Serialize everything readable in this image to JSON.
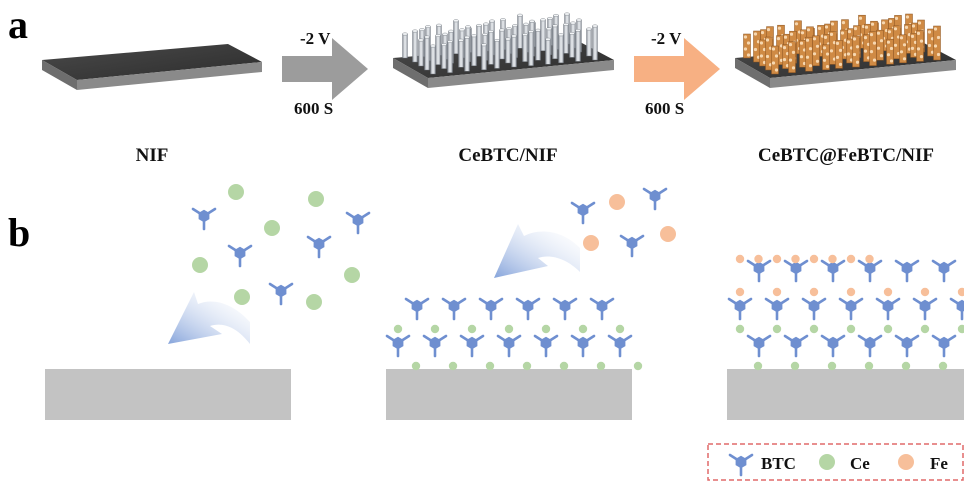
{
  "panel_a": {
    "letter": "a",
    "samples": [
      {
        "label": "NIF"
      },
      {
        "label": "CeBTC/NIF"
      },
      {
        "label": "CeBTC@FeBTC/NIF"
      }
    ],
    "steps": [
      {
        "voltage": "-2 V",
        "time": "600 S",
        "color": "#9c9c9c"
      },
      {
        "voltage": "-2 V",
        "time": "600 S",
        "color": "#f7b083"
      }
    ]
  },
  "panel_b": {
    "letter": "b"
  },
  "legend": {
    "btc": "BTC",
    "ce": "Ce",
    "fe": "Fe"
  },
  "colors": {
    "btc": "#6f8fd0",
    "ce": "#b5d6a5",
    "fe": "#f7bf9a",
    "substrate": "#c3c3c3",
    "nanorod": "#d9dde3",
    "coating": "#cf8a44",
    "legend_border": "#e06a6a"
  },
  "icons": [
    "btc-linker-icon",
    "ce-ion-icon",
    "fe-ion-icon",
    "deposition-arrow-icon",
    "process-arrow-icon"
  ]
}
